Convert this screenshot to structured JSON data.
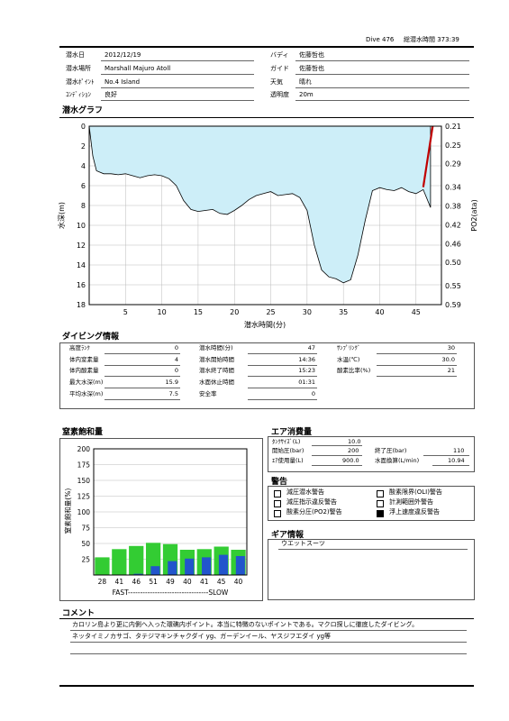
{
  "header": {
    "dive_label": "Dive 476",
    "total_time_label": "総潜水時間 373:39"
  },
  "info": {
    "date_label": "潜水日",
    "date": "2012/12/19",
    "buddy_label": "バディ",
    "buddy": "佐藤哲也",
    "place_label": "潜水場所",
    "place": "Marshall Majuro Atoll",
    "guide_label": "ガイド",
    "guide": "佐藤哲也",
    "point_label": "潜水ﾎﾟｲﾝﾄ",
    "point": "No.4  Island",
    "weather_label": "天気",
    "weather": "晴れ",
    "condition_label": "ｺﾝﾃﾞｨｼｮﾝ",
    "condition": "良好",
    "visibility_label": "透明度",
    "visibility": "20m"
  },
  "profile_title": "潜水グラフ",
  "profile_chart": {
    "type": "area",
    "x": [
      0,
      0.5,
      1,
      2,
      3,
      4,
      5,
      6,
      7,
      8,
      9,
      10,
      11,
      12,
      13,
      14,
      15,
      16,
      17,
      18,
      19,
      20,
      21,
      22,
      23,
      24,
      25,
      26,
      27,
      28,
      29,
      30,
      31,
      32,
      33,
      34,
      35,
      36,
      37,
      38,
      39,
      40,
      41,
      42,
      43,
      44,
      45,
      46,
      47
    ],
    "y": [
      0,
      3,
      4.5,
      4.8,
      4.8,
      4.9,
      4.8,
      5.0,
      5.2,
      5.0,
      4.9,
      5.0,
      5.3,
      6.0,
      7.5,
      8.4,
      8.6,
      8.5,
      8.4,
      8.8,
      8.9,
      8.5,
      8.0,
      7.4,
      7.0,
      6.8,
      6.6,
      7.0,
      6.9,
      6.8,
      7.2,
      8.5,
      12.0,
      14.5,
      15.2,
      15.4,
      15.8,
      15.5,
      13.0,
      9.5,
      6.5,
      6.2,
      6.4,
      6.5,
      6.2,
      6.6,
      6.8,
      6.4,
      8.2
    ],
    "po2_x": [
      46,
      47.3
    ],
    "po2_y": [
      0.34,
      0.21
    ],
    "xlabel": "潜水時間(分)",
    "ylabel": "水深(m)",
    "y2label": "PO2(ata)",
    "xlim": [
      0,
      48.5
    ],
    "ylim": [
      0,
      18
    ],
    "x_ticks": [
      "5",
      "10",
      "15",
      "20",
      "25",
      "30",
      "35",
      "40",
      "45"
    ],
    "y_ticks": [
      "0",
      "2",
      "4",
      "6",
      "8",
      "10",
      "12",
      "14",
      "16",
      "18"
    ],
    "y2_ticks": [
      "0.21",
      "0.25",
      "0.29",
      "0.34",
      "0.38",
      "0.42",
      "0.46",
      "0.50",
      "0.55",
      "0.59"
    ],
    "fill_color": "#cdeef8",
    "po2_color": "#c00000"
  },
  "dive_info": {
    "title": "ダイビング情報",
    "col1": [
      {
        "label": "高度ﾗﾝｸ",
        "value": "0"
      },
      {
        "label": "体内窒素量",
        "value": "4"
      },
      {
        "label": "体内酸素量",
        "value": "0"
      },
      {
        "label": "最大水深(m)",
        "value": "15.9"
      },
      {
        "label": "平均水深(m)",
        "value": "7.5"
      }
    ],
    "col2": [
      {
        "label": "潜水時間(分)",
        "value": "47"
      },
      {
        "label": "潜水開始時間",
        "value": "14:36"
      },
      {
        "label": "潜水終了時間",
        "value": "15:23"
      },
      {
        "label": "水面休止時間",
        "value": "01:31"
      },
      {
        "label": "安全率",
        "value": "0"
      }
    ],
    "col3": [
      {
        "label": "ｻﾝﾌﾟﾘﾝｸﾞ",
        "value": "30"
      },
      {
        "label": "水温(℃)",
        "value": "30.0"
      },
      {
        "label": "酸素比率(%)",
        "value": "21"
      }
    ]
  },
  "nitrogen": {
    "title": "窒素飽和量",
    "chart_data": {
      "type": "bar",
      "categories": [
        "28",
        "41",
        "46",
        "51",
        "49",
        "40",
        "41",
        "45",
        "40"
      ],
      "series": [
        {
          "values": [
            28,
            41,
            46,
            51,
            49,
            40,
            41,
            45,
            40
          ]
        },
        {
          "values": [
            0,
            0,
            2,
            14,
            22,
            26,
            28,
            32,
            30
          ]
        }
      ],
      "ylabel": "窒素飽和量(%)",
      "ylim": [
        0,
        200
      ],
      "y_ticks": [
        "200",
        "175",
        "150",
        "125",
        "100",
        "75",
        "50",
        "25"
      ],
      "x_caption": "FAST---------------------------------SLOW",
      "colors": [
        "#33cc33",
        "#2255cc"
      ]
    }
  },
  "air": {
    "title": "エア消費量",
    "tank_label": "ﾀﾝｸｻｲｽﾞ(L)",
    "tank": "10.0",
    "start_label": "開始圧(bar)",
    "start": "200",
    "end_label": "終了圧(bar)",
    "end": "110",
    "used_label": "ｴｱ使用量(L)",
    "used": "900.0",
    "surface_label": "水面換算(L/min)",
    "surface": "10.94"
  },
  "warnings": {
    "title": "警告",
    "items": [
      {
        "label": "減圧潜水警告",
        "checked": false
      },
      {
        "label": "酸素限界(OLI)警告",
        "checked": false
      },
      {
        "label": "減圧指示違反警告",
        "checked": false
      },
      {
        "label": "計測範囲外警告",
        "checked": false
      },
      {
        "label": "酸素分圧(PO2)警告",
        "checked": false
      },
      {
        "label": "浮上速度違反警告",
        "checked": true
      }
    ]
  },
  "gear": {
    "title": "ギア情報",
    "text": "ウエットスーツ"
  },
  "comment": {
    "title": "コメント",
    "line1": "カロリン島より更に内側へ入った環礁内ポイント。本当に特徴のないポイントである。マクロ探しに徹底したダイビング。",
    "line2": "ネッタイミノカサゴ、タテジマキンチャクダイ yg、ガーデンイール、ヤスジフエダイ yg等"
  }
}
